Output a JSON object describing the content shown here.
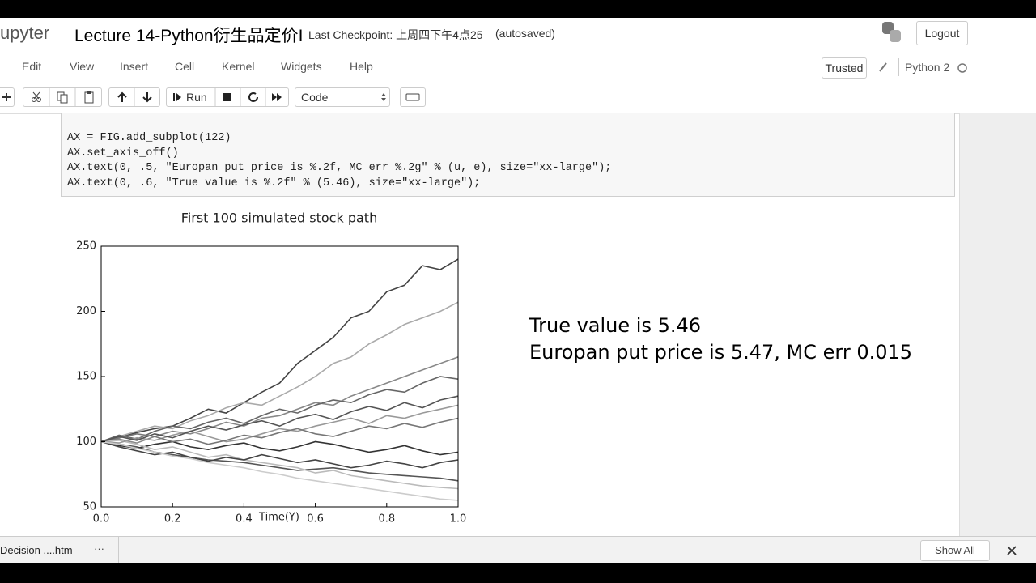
{
  "header": {
    "logo": "upyter",
    "title": "Lecture 14-Python衍生品定价I",
    "checkpoint": "Last Checkpoint: 上周四下午4点25",
    "autosave": "(autosaved)",
    "logout": "Logout"
  },
  "menu": [
    "Edit",
    "View",
    "Insert",
    "Cell",
    "Kernel",
    "Widgets",
    "Help"
  ],
  "kernel": {
    "trusted": "Trusted",
    "name": "Python 2"
  },
  "toolbar": {
    "run": "Run",
    "cell_type": "Code"
  },
  "code": [
    "AX = FIG.add_subplot(122)",
    "AX.set_axis_off()",
    "AX.text(0, .5, \"Europan put price is %.2f, MC err %.2g\" % (u, e), size=\"xx-large\");",
    "AX.text(0, .6, \"True value is %.2f\" % (5.46), size=\"xx-large\");"
  ],
  "chart_data": {
    "type": "line",
    "title": "First 100 simulated stock path",
    "xlabel": "Time(Y)",
    "x": [
      0,
      0.05,
      0.1,
      0.15,
      0.2,
      0.25,
      0.3,
      0.35,
      0.4,
      0.45,
      0.5,
      0.55,
      0.6,
      0.65,
      0.7,
      0.75,
      0.8,
      0.85,
      0.9,
      0.95,
      1
    ],
    "xlim": [
      0,
      1
    ],
    "xticks": [
      {
        "value": 0,
        "label": "0.0"
      },
      0.2,
      0.4,
      0.6,
      0.8,
      {
        "value": 1,
        "label": "1.0"
      }
    ],
    "ylim": [
      50,
      250
    ],
    "yticks": [
      50,
      100,
      150,
      200,
      250
    ],
    "series": [
      {
        "color": "#444444",
        "values": [
          100,
          103,
          107,
          110,
          112,
          118,
          125,
          122,
          130,
          138,
          145,
          160,
          170,
          180,
          195,
          200,
          215,
          220,
          235,
          232,
          240
        ]
      },
      {
        "color": "#aaaaaa",
        "values": [
          100,
          104,
          108,
          112,
          110,
          116,
          120,
          126,
          130,
          128,
          135,
          142,
          150,
          160,
          165,
          175,
          182,
          190,
          195,
          200,
          207
        ]
      },
      {
        "color": "#555555",
        "values": [
          100,
          98,
          96,
          92,
          90,
          88,
          86,
          85,
          84,
          82,
          80,
          78,
          79,
          80,
          78,
          76,
          75,
          74,
          73,
          72,
          70
        ]
      },
      {
        "color": "#888888",
        "values": [
          100,
          102,
          99,
          104,
          108,
          106,
          110,
          115,
          112,
          118,
          120,
          125,
          130,
          128,
          135,
          140,
          145,
          150,
          155,
          160,
          165
        ]
      },
      {
        "color": "#333333",
        "values": [
          100,
          97,
          95,
          98,
          100,
          96,
          94,
          97,
          99,
          95,
          93,
          96,
          100,
          98,
          95,
          92,
          94,
          97,
          93,
          90,
          92
        ]
      },
      {
        "color": "#bbbbbb",
        "values": [
          100,
          101,
          98,
          94,
          96,
          92,
          88,
          90,
          86,
          84,
          82,
          80,
          76,
          78,
          74,
          72,
          70,
          68,
          66,
          65,
          64
        ]
      },
      {
        "color": "#666666",
        "values": [
          100,
          105,
          102,
          108,
          112,
          110,
          115,
          118,
          114,
          120,
          125,
          122,
          128,
          132,
          130,
          136,
          140,
          138,
          145,
          150,
          148
        ]
      },
      {
        "color": "#999999",
        "values": [
          100,
          99,
          103,
          101,
          105,
          108,
          104,
          100,
          102,
          106,
          110,
          108,
          112,
          115,
          118,
          114,
          120,
          118,
          122,
          125,
          128
        ]
      },
      {
        "color": "#444444",
        "values": [
          100,
          96,
          93,
          90,
          92,
          88,
          85,
          88,
          86,
          90,
          87,
          84,
          86,
          83,
          80,
          82,
          85,
          83,
          80,
          84,
          86
        ]
      },
      {
        "color": "#777777",
        "values": [
          100,
          103,
          106,
          104,
          100,
          102,
          98,
          101,
          105,
          103,
          107,
          110,
          106,
          104,
          108,
          112,
          110,
          114,
          111,
          115,
          118
        ]
      },
      {
        "color": "#cccccc",
        "values": [
          100,
          98,
          95,
          92,
          89,
          87,
          84,
          82,
          80,
          77,
          75,
          72,
          70,
          68,
          66,
          64,
          62,
          60,
          58,
          56,
          55
        ]
      },
      {
        "color": "#555555",
        "values": [
          100,
          104,
          101,
          106,
          103,
          108,
          112,
          109,
          113,
          116,
          112,
          118,
          121,
          117,
          123,
          127,
          124,
          130,
          126,
          132,
          135
        ]
      }
    ]
  },
  "output": [
    "True value is 5.46",
    "Europan put price is 5.47, MC err 0.015"
  ],
  "downloads": {
    "file": "Decision ....htm",
    "more": "···",
    "show_all": "Show All"
  }
}
